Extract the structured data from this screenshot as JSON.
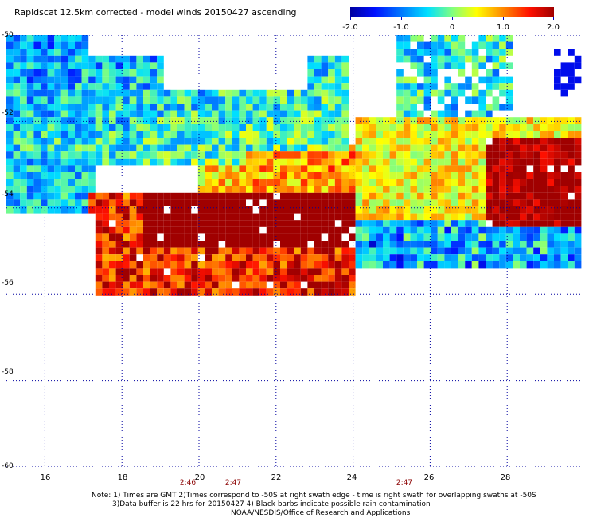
{
  "header": {
    "title": "Rapidscat 12.5km corrected - model winds 20150427 ascending"
  },
  "colorbar": {
    "labels": [
      "-2.0",
      "-1.0",
      "0",
      "1.0",
      "2.0"
    ],
    "values": [
      -2.0,
      -1.0,
      0,
      1.0,
      2.0
    ],
    "range": [
      -2.0,
      2.0
    ],
    "colors": {
      "low": "#0000a0",
      "mid": "#80ff80",
      "high": "#a00000"
    }
  },
  "map": {
    "lat_labels": [
      "-50",
      "-52",
      "-54",
      "-56",
      "-58",
      "-60"
    ],
    "lat_values": [
      -50,
      -52,
      -54,
      -56,
      -58,
      -60
    ],
    "lon_labels": [
      "16",
      "18",
      "20",
      "22",
      "24",
      "26",
      "28"
    ],
    "lon_values": [
      16,
      18,
      20,
      22,
      24,
      26,
      28
    ],
    "extent": {
      "lon_min": 15,
      "lon_max": 30,
      "lat_min": -60,
      "lat_max": -50
    },
    "grid": true,
    "gridline_color": "#0000a0"
  },
  "times": [
    {
      "label": "2:46",
      "lon": 19.6
    },
    {
      "label": "2:47",
      "lon": 20.8
    },
    {
      "label": "2:47",
      "lon": 25.3
    }
  ],
  "notes": {
    "line1": "Note: 1) Times are GMT 2)Times correspond to -50S at right swath edge - time is right swath for overlapping swaths at -50S",
    "line2": "3)Data buffer is 22 hrs for 20150427 4) Black barbs indicate possible rain contamination",
    "line3": "NOAA/NESDIS/Office of Research and Applications"
  }
}
